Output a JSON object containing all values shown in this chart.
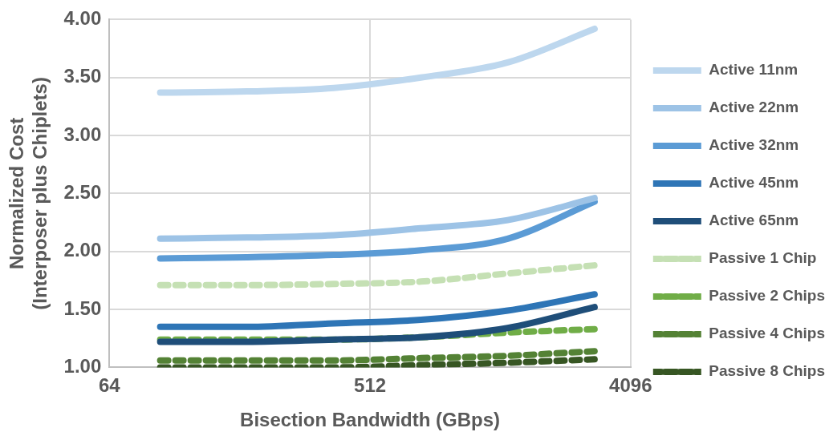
{
  "chart_data": {
    "type": "line",
    "xlabel": "Bisection Bandwidth (GBps)",
    "ylabel": "Normalized Cost\n(Interposer plus Chiplets)",
    "log": "x",
    "x": [
      96,
      192,
      384,
      768,
      1536,
      3072
    ],
    "xlim": [
      64,
      4096
    ],
    "xticks": [
      64,
      512,
      4096
    ],
    "ylim": [
      1,
      4
    ],
    "yticks": [
      {
        "value": 1,
        "label": "1.00"
      },
      {
        "value": 1.5,
        "label": "1.50"
      },
      {
        "value": 2,
        "label": "2.00"
      },
      {
        "value": 2.5,
        "label": "2.50"
      },
      {
        "value": 3,
        "label": "3.00"
      },
      {
        "value": 3.5,
        "label": "3.50"
      },
      {
        "value": 4,
        "label": "4.00"
      }
    ],
    "grid": true,
    "legend": "right",
    "marker": "none",
    "series": [
      {
        "name": "Active 11nm",
        "color": "#bdd7ee",
        "line_style": "solid",
        "values": [
          3.37,
          3.38,
          3.41,
          3.5,
          3.63,
          3.92
        ]
      },
      {
        "name": "Active 22nm",
        "color": "#9dc3e6",
        "line_style": "solid",
        "values": [
          2.11,
          2.12,
          2.14,
          2.2,
          2.27,
          2.46
        ]
      },
      {
        "name": "Active 32nm",
        "color": "#5b9bd5",
        "line_style": "solid",
        "values": [
          1.94,
          1.95,
          1.97,
          2.01,
          2.11,
          2.43
        ]
      },
      {
        "name": "Active 45nm",
        "color": "#2e75b6",
        "line_style": "solid",
        "values": [
          1.35,
          1.35,
          1.38,
          1.41,
          1.49,
          1.63
        ]
      },
      {
        "name": "Active 65nm",
        "color": "#1f4e79",
        "line_style": "solid",
        "values": [
          1.22,
          1.22,
          1.24,
          1.26,
          1.34,
          1.52
        ]
      },
      {
        "name": "Passive 1 Chip",
        "color": "#c5e0b4",
        "line_style": "dashed",
        "values": [
          1.71,
          1.71,
          1.72,
          1.74,
          1.81,
          1.88
        ]
      },
      {
        "name": "Passive 2 Chips",
        "color": "#70ad47",
        "line_style": "dashed",
        "values": [
          1.24,
          1.24,
          1.24,
          1.26,
          1.3,
          1.33
        ]
      },
      {
        "name": "Passive 4 Chips",
        "color": "#548235",
        "line_style": "dashed",
        "values": [
          1.06,
          1.06,
          1.06,
          1.08,
          1.1,
          1.14
        ]
      },
      {
        "name": "Passive 8 Chips",
        "color": "#375623",
        "line_style": "dashed",
        "values": [
          1,
          1,
          1,
          1.02,
          1.04,
          1.07
        ]
      }
    ]
  }
}
